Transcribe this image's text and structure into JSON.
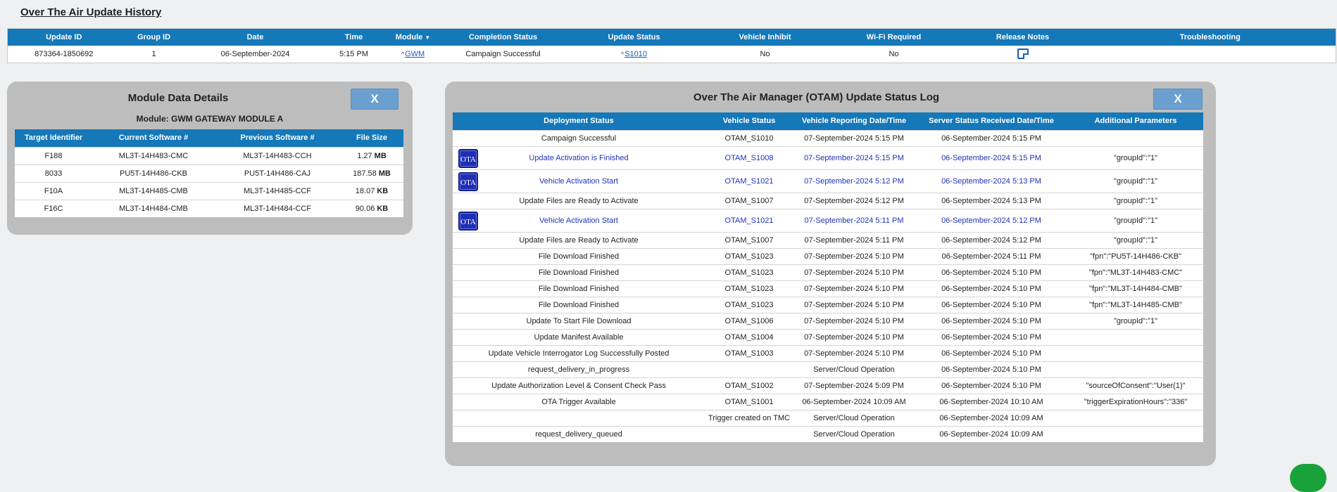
{
  "page_title": "Over The Air Update History",
  "history": {
    "headers": [
      "Update ID",
      "Group ID",
      "Date",
      "Time",
      "Module",
      "Completion Status",
      "Update Status",
      "Vehicle Inhibit",
      "Wi-Fi Required",
      "Release Notes",
      "Troubleshooting"
    ],
    "row": {
      "update_id": "873364-1850692",
      "group_id": "1",
      "date": "06-September-2024",
      "time": "5:15 PM",
      "module": "GWM",
      "completion_status": "Campaign Successful",
      "update_status": "S1010",
      "vehicle_inhibit": "No",
      "wifi_required": "No"
    }
  },
  "module_panel": {
    "title": "Module Data Details",
    "close_label": "X",
    "subtitle": "Module: GWM GATEWAY MODULE A",
    "headers": [
      "Target Identifier",
      "Current Software #",
      "Previous Software #",
      "File Size"
    ],
    "rows": [
      {
        "target": "F188",
        "current": "ML3T-14H483-CMC",
        "previous": "ML3T-14H483-CCH",
        "size": "1.27",
        "unit": "MB"
      },
      {
        "target": "8033",
        "current": "PU5T-14H486-CKB",
        "previous": "PU5T-14H486-CAJ",
        "size": "187.58",
        "unit": "MB"
      },
      {
        "target": "F10A",
        "current": "ML3T-14H485-CMB",
        "previous": "ML3T-14H485-CCF",
        "size": "18.07",
        "unit": "KB"
      },
      {
        "target": "F16C",
        "current": "ML3T-14H484-CMB",
        "previous": "ML3T-14H484-CCF",
        "size": "90.06",
        "unit": "KB"
      }
    ]
  },
  "otam_panel": {
    "title": "Over The Air Manager (OTAM) Update Status Log",
    "close_label": "X",
    "badge_label": "OTA",
    "headers": [
      "Deployment Status",
      "Vehicle Status",
      "Vehicle Reporting Date/Time",
      "Server Status Received Date/Time",
      "Additional Parameters"
    ],
    "rows": [
      {
        "deployment": "Campaign Successful",
        "vehicle_status": "OTAM_S1010",
        "reporting": "07-September-2024 5:15 PM",
        "received": "06-September-2024 5:15 PM",
        "params": ""
      },
      {
        "deployment": "Update Activation is Finished",
        "vehicle_status": "OTAM_S1008",
        "reporting": "07-September-2024 5:15 PM",
        "received": "06-September-2024 5:15 PM",
        "params": "\"groupId\":\"1\""
      },
      {
        "deployment": "Vehicle Activation Start",
        "vehicle_status": "OTAM_S1021",
        "reporting": "07-September-2024 5:12 PM",
        "received": "06-September-2024 5:13 PM",
        "params": "\"groupId\":\"1\""
      },
      {
        "deployment": "Update Files are Ready to Activate",
        "vehicle_status": "OTAM_S1007",
        "reporting": "07-September-2024 5:12 PM",
        "received": "06-September-2024 5:13 PM",
        "params": "\"groupId\":\"1\""
      },
      {
        "deployment": "Vehicle Activation Start",
        "vehicle_status": "OTAM_S1021",
        "reporting": "07-September-2024 5:11 PM",
        "received": "06-September-2024 5:12 PM",
        "params": "\"groupId\":\"1\""
      },
      {
        "deployment": "Update Files are Ready to Activate",
        "vehicle_status": "OTAM_S1007",
        "reporting": "07-September-2024 5:11 PM",
        "received": "06-September-2024 5:12 PM",
        "params": "\"groupId\":\"1\""
      },
      {
        "deployment": "File Download Finished",
        "vehicle_status": "OTAM_S1023",
        "reporting": "07-September-2024 5:10 PM",
        "received": "06-September-2024 5:11 PM",
        "params": "\"fpn\":\"PU5T-14H486-CKB\""
      },
      {
        "deployment": "File Download Finished",
        "vehicle_status": "OTAM_S1023",
        "reporting": "07-September-2024 5:10 PM",
        "received": "06-September-2024 5:10 PM",
        "params": "\"fpn\":\"ML3T-14H483-CMC\""
      },
      {
        "deployment": "File Download Finished",
        "vehicle_status": "OTAM_S1023",
        "reporting": "07-September-2024 5:10 PM",
        "received": "06-September-2024 5:10 PM",
        "params": "\"fpn\":\"ML3T-14H484-CMB\""
      },
      {
        "deployment": "File Download Finished",
        "vehicle_status": "OTAM_S1023",
        "reporting": "07-September-2024 5:10 PM",
        "received": "06-September-2024 5:10 PM",
        "params": "\"fpn\":\"ML3T-14H485-CMB\""
      },
      {
        "deployment": "Update To Start File Download",
        "vehicle_status": "OTAM_S1006",
        "reporting": "07-September-2024 5:10 PM",
        "received": "06-September-2024 5:10 PM",
        "params": "\"groupId\":\"1\""
      },
      {
        "deployment": "Update Manifest Available",
        "vehicle_status": "OTAM_S1004",
        "reporting": "07-September-2024 5:10 PM",
        "received": "06-September-2024 5:10 PM",
        "params": ""
      },
      {
        "deployment": "Update Vehicle Interrogator Log Successfully Posted",
        "vehicle_status": "OTAM_S1003",
        "reporting": "07-September-2024 5:10 PM",
        "received": "06-September-2024 5:10 PM",
        "params": ""
      },
      {
        "deployment": "request_delivery_in_progress",
        "vehicle_status": "",
        "reporting": "Server/Cloud Operation",
        "received": "06-September-2024 5:10 PM",
        "params": ""
      },
      {
        "deployment": "Update Authorization Level & Consent Check Pass",
        "vehicle_status": "OTAM_S1002",
        "reporting": "07-September-2024 5:09 PM",
        "received": "06-September-2024 5:10 PM",
        "params": "\"sourceOfConsent\":\"User(1)\""
      },
      {
        "deployment": "OTA Trigger Available",
        "vehicle_status": "OTAM_S1001",
        "reporting": "06-September-2024 10:09 AM",
        "received": "06-September-2024 10:10 AM",
        "params": "\"triggerExpirationHours\":\"336\""
      },
      {
        "deployment": "",
        "vehicle_status": "Trigger created on TMC",
        "reporting": "Server/Cloud Operation",
        "received": "06-September-2024 10:09 AM",
        "params": ""
      },
      {
        "deployment": "request_delivery_queued",
        "vehicle_status": "",
        "reporting": "Server/Cloud Operation",
        "received": "06-September-2024 10:09 AM",
        "params": ""
      }
    ]
  },
  "colors": {
    "header_blue": "#1578b8",
    "panel_gray": "#bdbdbd",
    "close_button": "#6b9fd0",
    "success_green": "#2f7d2f",
    "cloud_orange": "#e08a1e",
    "activation_blue": "#1f33b8",
    "ota_badge": "#1f2fb5"
  },
  "icons": {
    "release_notes": "note-icon",
    "chat": "chat-bubble-icon",
    "ota": "ota-badge-icon"
  }
}
